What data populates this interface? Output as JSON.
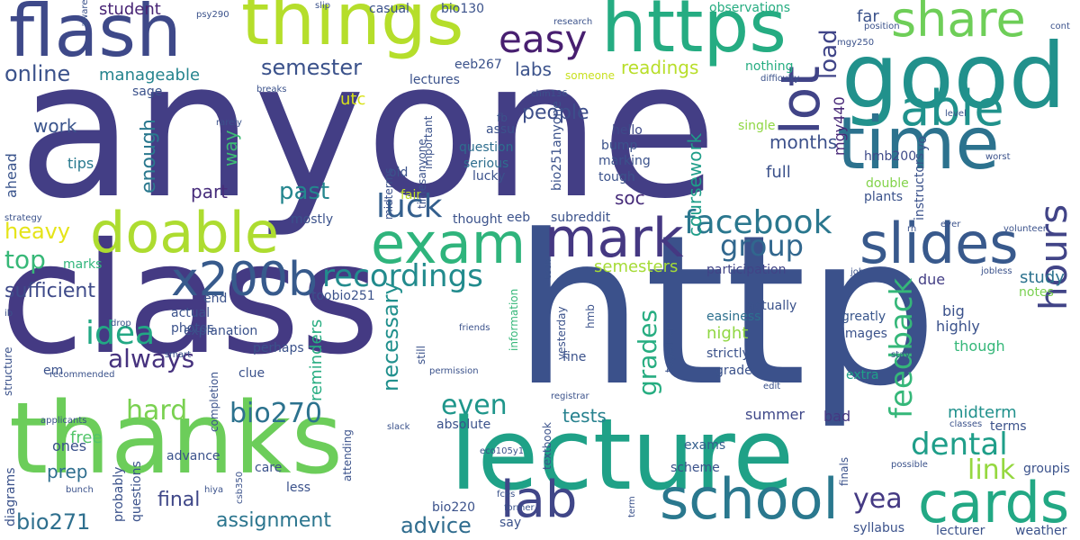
{
  "words": [
    {
      "t": "anyone",
      "c": "#433e85"
    },
    {
      "t": "http",
      "c": "#3b518b"
    },
    {
      "t": "class",
      "c": "#443a83"
    },
    {
      "t": "thanks",
      "c": "#6ccd5a"
    },
    {
      "t": "lecture",
      "c": "#1fa187"
    },
    {
      "t": "good",
      "c": "#21918c"
    },
    {
      "t": "things",
      "c": "#b5de2b"
    },
    {
      "t": "flash",
      "c": "#3e4989"
    },
    {
      "t": "https",
      "c": "#25ac82"
    },
    {
      "t": "time",
      "c": "#2c728e"
    },
    {
      "t": "school",
      "c": "#2a788e"
    },
    {
      "t": "cards",
      "c": "#22a884"
    },
    {
      "t": "slides",
      "c": "#38598c"
    },
    {
      "t": "exam",
      "c": "#2fb47c"
    },
    {
      "t": "doable",
      "c": "#addc30"
    },
    {
      "t": "mark",
      "c": "#453882"
    },
    {
      "t": "lab",
      "c": "#404688"
    },
    {
      "t": "lot",
      "c": "#414487"
    },
    {
      "t": "share",
      "c": "#6ece58"
    },
    {
      "t": "easy",
      "c": "#481f70"
    },
    {
      "t": "able",
      "c": "#20928c"
    },
    {
      "t": "x200b",
      "c": "#375a8c"
    },
    {
      "t": "hours",
      "c": "#414487"
    },
    {
      "t": "facebook",
      "c": "#2a778e"
    },
    {
      "t": "recordings",
      "c": "#228b8d"
    },
    {
      "t": "luck",
      "c": "#345f8d"
    },
    {
      "t": "idea",
      "c": "#22a884"
    },
    {
      "t": "dental",
      "c": "#1f9e89"
    },
    {
      "t": "group",
      "c": "#31678e"
    },
    {
      "t": "feedback",
      "c": "#35b779"
    },
    {
      "t": "bio270",
      "c": "#2c728e"
    },
    {
      "t": "hard",
      "c": "#7ad151"
    },
    {
      "t": "link",
      "c": "#95d840"
    },
    {
      "t": "grades",
      "c": "#27ad81"
    },
    {
      "t": "even",
      "c": "#1f968b"
    },
    {
      "t": "yea",
      "c": "#443983"
    },
    {
      "t": "semester",
      "c": "#3b528b"
    },
    {
      "t": "online",
      "c": "#3b528b"
    },
    {
      "t": "top",
      "c": "#37b878"
    },
    {
      "t": "always",
      "c": "#46327e"
    },
    {
      "t": "sufficient",
      "c": "#3e4a89"
    },
    {
      "t": "past",
      "c": "#24868e"
    },
    {
      "t": "people",
      "c": "#3d4e8a"
    },
    {
      "t": "load",
      "c": "#404588"
    },
    {
      "t": "necessary",
      "c": "#21908d"
    },
    {
      "t": "enough",
      "c": "#2a788e"
    },
    {
      "t": "heavy",
      "c": "#e5e419"
    },
    {
      "t": "bio271",
      "c": "#2e6f8e"
    },
    {
      "t": "assignment",
      "c": "#2b758e"
    },
    {
      "t": "advice",
      "c": "#2f6c8e"
    },
    {
      "t": "final",
      "c": "#3f4788"
    },
    {
      "t": "months",
      "c": "#3c508b"
    },
    {
      "t": "readings",
      "c": "#b8de29"
    },
    {
      "t": "manageable",
      "c": "#25848e"
    },
    {
      "t": "coursework",
      "c": "#1f9e89"
    },
    {
      "t": "labs",
      "c": "#3b528b"
    },
    {
      "t": "work",
      "c": "#3a548c"
    },
    {
      "t": "part",
      "c": "#472d7b"
    },
    {
      "t": "way",
      "c": "#3dbc74"
    },
    {
      "t": "soc",
      "c": "#472c7a"
    },
    {
      "t": "tests",
      "c": "#26818e"
    },
    {
      "t": "midterm",
      "c": "#21918c"
    },
    {
      "t": "study",
      "c": "#2c728e"
    },
    {
      "t": "student",
      "c": "#482475"
    },
    {
      "t": "semesters",
      "c": "#a5db36"
    },
    {
      "t": "reminders",
      "c": "#27ad81"
    },
    {
      "t": "full",
      "c": "#3b518b"
    },
    {
      "t": "night",
      "c": "#90d743"
    },
    {
      "t": "mgy440",
      "c": "#482878"
    },
    {
      "t": "far",
      "c": "#3b528b"
    },
    {
      "t": "ahead",
      "c": "#3a548c"
    },
    {
      "t": "prep",
      "c": "#2e6e8e"
    },
    {
      "t": "free",
      "c": "#52c569"
    },
    {
      "t": "utc",
      "c": "#d8e219"
    },
    {
      "t": "summer",
      "c": "#3f4889"
    },
    {
      "t": "bad",
      "c": "#453882"
    },
    {
      "t": "exams",
      "c": "#355f8d"
    },
    {
      "t": "tips",
      "c": "#29798e"
    },
    {
      "t": "ones",
      "c": "#3b528b"
    },
    {
      "t": "marks",
      "c": "#31b57b"
    },
    {
      "t": "hmb200",
      "c": "#3e4a89"
    },
    {
      "t": "big",
      "c": "#3b528b"
    },
    {
      "t": "highly",
      "c": "#3b528b"
    },
    {
      "t": "though",
      "c": "#35b779"
    },
    {
      "t": "due",
      "c": "#433e85"
    },
    {
      "t": "notes",
      "c": "#7ad151"
    },
    {
      "t": "terms",
      "c": "#3b528b"
    },
    {
      "t": "easiness",
      "c": "#2d708e"
    },
    {
      "t": "participation",
      "c": "#414487"
    },
    {
      "t": "plants",
      "c": "#3b528b"
    },
    {
      "t": "double",
      "c": "#83d34b"
    },
    {
      "t": "instructors",
      "c": "#3b528b"
    },
    {
      "t": "images",
      "c": "#3b528b"
    },
    {
      "t": "greatly",
      "c": "#39568c"
    },
    {
      "t": "extra",
      "c": "#1fa188"
    },
    {
      "t": "actually",
      "c": "#3b528b"
    },
    {
      "t": "strictly",
      "c": "#3b528b"
    },
    {
      "t": "grade",
      "c": "#3b528b"
    },
    {
      "t": "hello",
      "c": "#3e4a89"
    },
    {
      "t": "bump",
      "c": "#3b528b"
    },
    {
      "t": "marking",
      "c": "#3b528b"
    },
    {
      "t": "tough",
      "c": "#3b528b"
    },
    {
      "t": "single",
      "c": "#8fd744"
    },
    {
      "t": "observations",
      "c": "#26ad81"
    },
    {
      "t": "nothing",
      "c": "#26ad81"
    },
    {
      "t": "fb",
      "c": "#3b528b"
    },
    {
      "t": "assu",
      "c": "#3b528b"
    },
    {
      "t": "question",
      "c": "#2e6e8e"
    },
    {
      "t": "serious",
      "c": "#2e6e8e"
    },
    {
      "t": "lucky",
      "c": "#3b528b"
    },
    {
      "t": "bio251anyone",
      "c": "#3b528b"
    },
    {
      "t": "important",
      "c": "#3b528b"
    },
    {
      "t": "fair",
      "c": "#bddf26"
    },
    {
      "t": "old",
      "c": "#3b528b"
    },
    {
      "t": "thought",
      "c": "#3b528b"
    },
    {
      "t": "eeb",
      "c": "#3b528b"
    },
    {
      "t": "subreddit",
      "c": "#3b528b"
    },
    {
      "t": "casual",
      "c": "#3b528b"
    },
    {
      "t": "bio130",
      "c": "#3b528b"
    },
    {
      "t": "eeb267",
      "c": "#3b528b"
    },
    {
      "t": "lectures",
      "c": "#3b528b"
    },
    {
      "t": "someone",
      "c": "#c8e020"
    },
    {
      "t": "sage",
      "c": "#3b528b"
    },
    {
      "t": "toobio251",
      "c": "#3b528b"
    },
    {
      "t": "end",
      "c": "#3b528b"
    },
    {
      "t": "actual",
      "c": "#3b528b"
    },
    {
      "t": "photos",
      "c": "#3b528b"
    },
    {
      "t": "explanation",
      "c": "#3b528b"
    },
    {
      "t": "perhaps",
      "c": "#3b528b"
    },
    {
      "t": "clue",
      "c": "#3b528b"
    },
    {
      "t": "em",
      "c": "#3b528b"
    },
    {
      "t": "mostly",
      "c": "#3b528b"
    },
    {
      "t": "timesanyone",
      "c": "#3b528b"
    },
    {
      "t": "midterms",
      "c": "#3b528b"
    },
    {
      "t": "information",
      "c": "#35b779"
    },
    {
      "t": "still",
      "c": "#3b528b"
    },
    {
      "t": "yesterday",
      "c": "#3b528b"
    },
    {
      "t": "hmb",
      "c": "#3b528b"
    },
    {
      "t": "fine",
      "c": "#3b528b"
    },
    {
      "t": "together",
      "c": "#3b528b"
    },
    {
      "t": "textbook",
      "c": "#3b528b"
    },
    {
      "t": "completion",
      "c": "#3b528b"
    },
    {
      "t": "absolute",
      "c": "#3b528b"
    },
    {
      "t": "advance",
      "c": "#3b528b"
    },
    {
      "t": "scheme",
      "c": "#3b528b"
    },
    {
      "t": "care",
      "c": "#3b528b"
    },
    {
      "t": "less",
      "c": "#3b528b"
    },
    {
      "t": "bio220",
      "c": "#3b528b"
    },
    {
      "t": "say",
      "c": "#3b528b"
    },
    {
      "t": "finals",
      "c": "#3b528b"
    },
    {
      "t": "syllabus",
      "c": "#3b528b"
    },
    {
      "t": "lecturer",
      "c": "#3b528b"
    },
    {
      "t": "weather",
      "c": "#3b528b"
    },
    {
      "t": "groupis",
      "c": "#3b528b"
    },
    {
      "t": "possible",
      "c": "#3b528b"
    },
    {
      "t": "diagrams",
      "c": "#3b528b"
    },
    {
      "t": "probably",
      "c": "#3b528b"
    },
    {
      "t": "questions",
      "c": "#3b528b"
    },
    {
      "t": "structure",
      "c": "#3b528b"
    },
    {
      "t": "strategy",
      "c": "#3b528b"
    },
    {
      "t": "recommended",
      "c": "#3b528b"
    },
    {
      "t": "applicants",
      "c": "#3b528b"
    },
    {
      "t": "bunch",
      "c": "#3b528b"
    },
    {
      "t": "drop",
      "c": "#3b528b"
    },
    {
      "t": "smart",
      "c": "#3b528b"
    },
    {
      "t": "ib",
      "c": "#3b528b"
    },
    {
      "t": "aware",
      "c": "#3b528b"
    },
    {
      "t": "psy290",
      "c": "#3b528b"
    },
    {
      "t": "slip",
      "c": "#3b528b"
    },
    {
      "t": "research",
      "c": "#3b528b"
    },
    {
      "t": "chm136",
      "c": "#3b528b"
    },
    {
      "t": "breaks",
      "c": "#3b528b"
    },
    {
      "t": "rarely",
      "c": "#3b528b"
    },
    {
      "t": "difficulty",
      "c": "#3b528b"
    },
    {
      "t": "position",
      "c": "#3b528b"
    },
    {
      "t": "mgy250",
      "c": "#3b528b"
    },
    {
      "t": "cont",
      "c": "#3b528b"
    },
    {
      "t": "yo",
      "c": "#3b528b"
    },
    {
      "t": "level",
      "c": "#3b528b"
    },
    {
      "t": "worst",
      "c": "#3b528b"
    },
    {
      "t": "volunteer",
      "c": "#3b528b"
    },
    {
      "t": "ever",
      "c": "#3b528b"
    },
    {
      "t": "rn",
      "c": "#3b528b"
    },
    {
      "t": "job",
      "c": "#3b528b"
    },
    {
      "t": "jobless",
      "c": "#3b528b"
    },
    {
      "t": "stay",
      "c": "#3b528b"
    },
    {
      "t": "edit",
      "c": "#3b528b"
    },
    {
      "t": "classes",
      "c": "#3b528b"
    },
    {
      "t": "tech",
      "c": "#3b528b"
    },
    {
      "t": "friends",
      "c": "#3b528b"
    },
    {
      "t": "permission",
      "c": "#3b528b"
    },
    {
      "t": "registrar",
      "c": "#3b528b"
    },
    {
      "t": "attending",
      "c": "#3b528b"
    },
    {
      "t": "slack",
      "c": "#3b528b"
    },
    {
      "t": "eco105y1",
      "c": "#3b528b"
    },
    {
      "t": "fces",
      "c": "#3b528b"
    },
    {
      "t": "former",
      "c": "#3b528b"
    },
    {
      "t": "hiya",
      "c": "#3b528b"
    },
    {
      "t": "csb350",
      "c": "#3b528b"
    },
    {
      "t": "term",
      "c": "#3b528b"
    }
  ]
}
